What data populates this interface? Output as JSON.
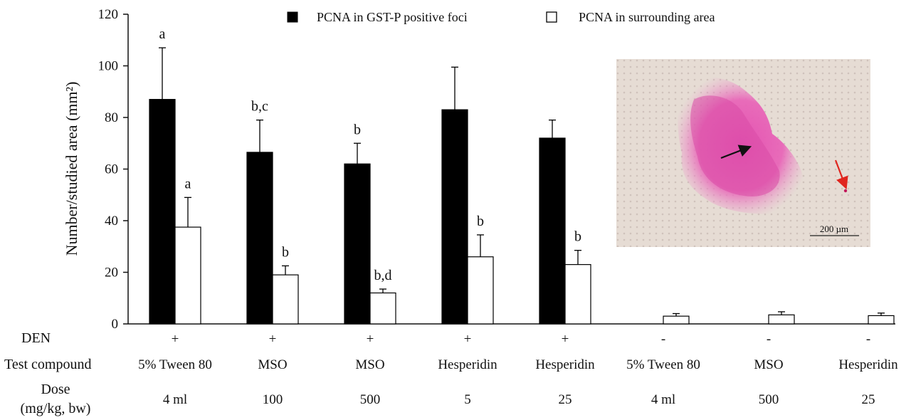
{
  "chart_data": {
    "type": "bar",
    "title": "",
    "ylabel": "Number/studied area  (mm²)",
    "xlabel": "",
    "ylim": [
      0,
      120
    ],
    "yticks": [
      0,
      20,
      40,
      60,
      80,
      100,
      120
    ],
    "grid": false,
    "legend_position": "top",
    "groups": [
      {
        "den": "+",
        "compound": "5% Tween 80",
        "dose": "4 ml"
      },
      {
        "den": "+",
        "compound": "MSO",
        "dose": "100"
      },
      {
        "den": "+",
        "compound": "MSO",
        "dose": "500"
      },
      {
        "den": "+",
        "compound": "Hesperidin",
        "dose": "5"
      },
      {
        "den": "+",
        "compound": "Hesperidin",
        "dose": "25"
      },
      {
        "den": "-",
        "compound": "5% Tween 80",
        "dose": "4 ml"
      },
      {
        "den": "-",
        "compound": "MSO",
        "dose": "500"
      },
      {
        "den": "-",
        "compound": "Hesperidin",
        "dose": "25"
      }
    ],
    "series": [
      {
        "name": "PCNA in GST-P positive foci",
        "color": "#000000",
        "values": [
          87,
          66.5,
          62,
          83,
          72,
          0,
          0,
          0
        ],
        "errors": [
          20,
          12.5,
          8,
          16.5,
          7,
          0,
          0,
          0
        ],
        "letters": [
          "a",
          "b,c",
          "b",
          "",
          "",
          "",
          "",
          ""
        ]
      },
      {
        "name": "PCNA in surrounding area",
        "color": "#ffffff",
        "values": [
          37.5,
          19,
          12,
          26,
          23,
          3,
          3.5,
          3.2
        ],
        "errors": [
          11.5,
          3.5,
          1.5,
          8.5,
          5.5,
          1,
          1.2,
          1
        ],
        "letters": [
          "a",
          "b",
          "b,d",
          "b",
          "b",
          "",
          "",
          ""
        ]
      }
    ],
    "row_labels": {
      "den": "DEN",
      "compound": "Test compound",
      "dose_line1": "Dose",
      "dose_line2": "(mg/kg, bw)"
    },
    "inset": {
      "scale_bar_label": "200 µm"
    }
  }
}
